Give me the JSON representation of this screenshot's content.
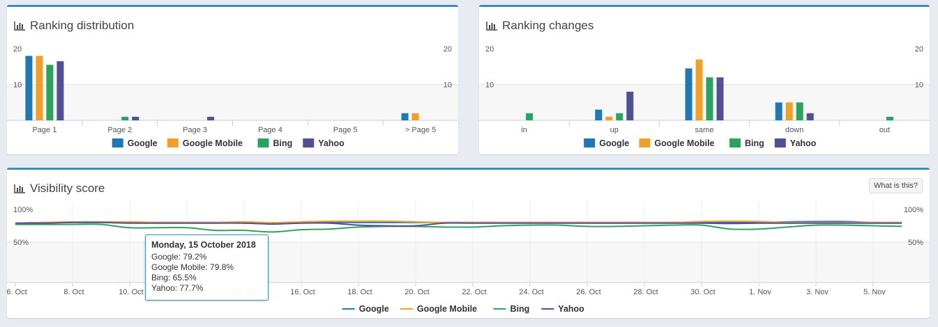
{
  "colors": {
    "google": "#1f77b4",
    "google_mobile": "#f0a02a",
    "bing": "#2ca25f",
    "yahoo": "#534f96",
    "panel_border": "#3c8dbc"
  },
  "panels": {
    "ranking_distribution": {
      "title": "Ranking distribution"
    },
    "ranking_changes": {
      "title": "Ranking changes"
    },
    "visibility": {
      "title": "Visibility score",
      "help_button": "What is this?"
    }
  },
  "tooltip": {
    "title": "Monday, 15 October 2018",
    "lines": [
      "Google: 79.2%",
      "Google Mobile: 79.8%",
      "Bing: 65.5%",
      "Yahoo: 77.7%"
    ]
  },
  "chart_data": [
    {
      "type": "bar",
      "title": "Ranking distribution",
      "categories": [
        "Page 1",
        "Page 2",
        "Page 3",
        "Page 4",
        "Page 5",
        "> Page 5"
      ],
      "series": [
        {
          "name": "Google",
          "values": [
            18,
            0,
            0,
            0,
            0,
            2
          ]
        },
        {
          "name": "Google Mobile",
          "values": [
            18,
            0,
            0,
            0,
            0,
            2
          ]
        },
        {
          "name": "Bing",
          "values": [
            15.5,
            1,
            0,
            0,
            0,
            0
          ]
        },
        {
          "name": "Yahoo",
          "values": [
            16.5,
            1,
            1,
            0,
            0,
            0
          ]
        }
      ],
      "yticks": [
        "20",
        "10"
      ],
      "ylim": [
        0,
        20
      ],
      "legend": "bottom"
    },
    {
      "type": "bar",
      "title": "Ranking changes",
      "categories": [
        "in",
        "up",
        "same",
        "down",
        "out"
      ],
      "series": [
        {
          "name": "Google",
          "values": [
            0,
            3,
            14.5,
            5,
            0
          ]
        },
        {
          "name": "Google Mobile",
          "values": [
            0,
            1,
            17,
            5,
            0
          ]
        },
        {
          "name": "Bing",
          "values": [
            2,
            2,
            12,
            5,
            1
          ]
        },
        {
          "name": "Yahoo",
          "values": [
            0,
            8,
            12,
            2,
            0
          ]
        }
      ],
      "yticks": [
        "20",
        "10"
      ],
      "ylim": [
        0,
        20
      ],
      "legend": "bottom"
    },
    {
      "type": "line",
      "title": "Visibility score",
      "x_labels": [
        "6. Oct",
        "8. Oct",
        "10. Oct",
        "12. Oct",
        "14. Oct",
        "16. Oct",
        "18. Oct",
        "20. Oct",
        "22. Oct",
        "24. Oct",
        "26. Oct",
        "28. Oct",
        "30. Oct",
        "1. Nov",
        "3. Nov",
        "5. Nov"
      ],
      "x": [
        "6. Oct",
        "7. Oct",
        "8. Oct",
        "9. Oct",
        "10. Oct",
        "11. Oct",
        "12. Oct",
        "13. Oct",
        "14. Oct",
        "15. Oct",
        "16. Oct",
        "17. Oct",
        "18. Oct",
        "19. Oct",
        "20. Oct",
        "21. Oct",
        "22. Oct",
        "23. Oct",
        "24. Oct",
        "25. Oct",
        "26. Oct",
        "27. Oct",
        "28. Oct",
        "29. Oct",
        "30. Oct",
        "31. Oct",
        "1. Nov",
        "2. Nov",
        "3. Nov",
        "4. Nov",
        "5. Nov",
        "6. Nov"
      ],
      "series": [
        {
          "name": "Google",
          "values": [
            79,
            80,
            80,
            80,
            80,
            80,
            80,
            80,
            80,
            79.2,
            80,
            80,
            80,
            80,
            80,
            80,
            80,
            80,
            80,
            80,
            80,
            80,
            80,
            80,
            80,
            80,
            80,
            81,
            81.5,
            81.5,
            80,
            80
          ]
        },
        {
          "name": "Google Mobile",
          "values": [
            79,
            80,
            81,
            81,
            81,
            80,
            80,
            80,
            81,
            79.8,
            81,
            82,
            82,
            82,
            81,
            80,
            80,
            80,
            80,
            80,
            80,
            80,
            80,
            80,
            81.5,
            82,
            81.5,
            80,
            80,
            80,
            80,
            80
          ]
        },
        {
          "name": "Bing",
          "values": [
            77,
            77,
            77,
            77,
            72,
            72,
            72,
            68,
            68,
            65.5,
            69,
            70,
            73,
            74,
            74,
            73,
            73,
            75,
            76,
            76,
            74,
            74,
            75,
            76,
            76,
            70,
            70,
            73,
            76,
            76,
            75,
            74
          ]
        },
        {
          "name": "Yahoo",
          "values": [
            79,
            79,
            80,
            80,
            79,
            79,
            79,
            79,
            79,
            77.7,
            79,
            79,
            76,
            75,
            75,
            79,
            79,
            79,
            79,
            79,
            79,
            79,
            79,
            79,
            79,
            78.5,
            79,
            79,
            79,
            79,
            79,
            79
          ]
        }
      ],
      "yticks": [
        "100%",
        "50%"
      ],
      "ylim": [
        0,
        100
      ],
      "legend": "bottom"
    }
  ]
}
